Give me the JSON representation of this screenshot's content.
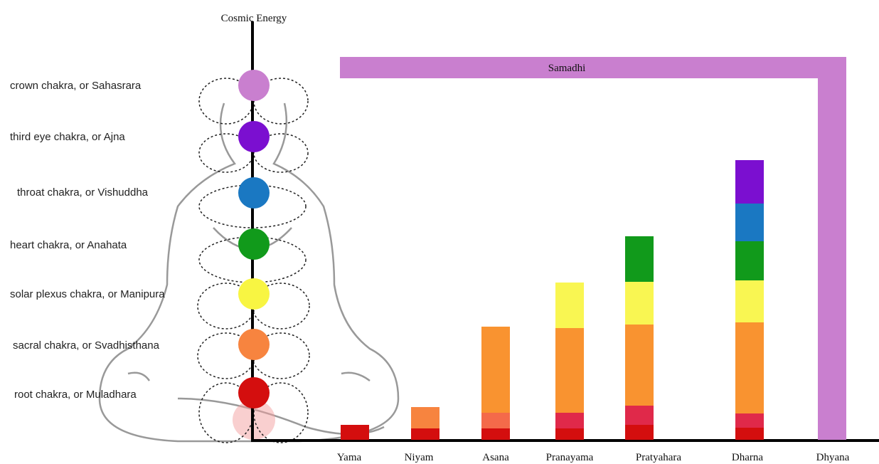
{
  "top_label": "Cosmic Energy",
  "chakras": [
    "crown chakra, or Sahasrara",
    "third eye chakra, or Ajna",
    "throat chakra, or Vishuddha",
    "heart chakra, or Anahata",
    "solar plexus chakra, or Manipura",
    "sacral chakra, or Svadhisthana",
    "root chakra, or Muladhara"
  ],
  "samadhi": "Samadhi",
  "stages": [
    "Yama",
    "Niyam",
    "Asana",
    "Pranayama",
    "Pratyahara",
    "Dharna",
    "Dhyana"
  ]
}
